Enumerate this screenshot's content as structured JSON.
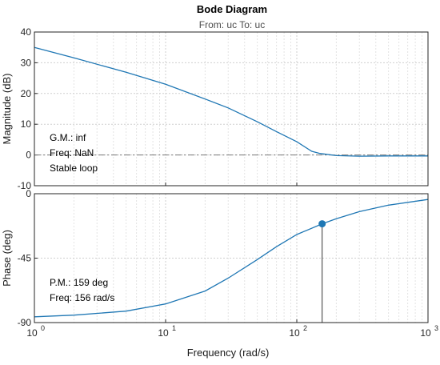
{
  "chart_data": {
    "type": "line",
    "title": "Bode Diagram",
    "subtitle": "From: uc  To: uc",
    "xlabel": "Frequency  (rad/s)",
    "x_scale": "log",
    "xlim": [
      1,
      1000
    ],
    "x_ticks": [
      1,
      10,
      100,
      1000
    ],
    "x_tick_labels": [
      "10",
      "10",
      "10",
      "10"
    ],
    "x_tick_exponents": [
      "0",
      "1",
      "2",
      "3"
    ],
    "grid": true,
    "line_color": "#1f77b4",
    "panels": [
      {
        "name": "magnitude",
        "ylabel": "Magnitude (dB)",
        "ylim": [
          -10,
          40
        ],
        "y_ticks": [
          -10,
          0,
          10,
          20,
          30,
          40
        ],
        "y_tick_labels": [
          "-10",
          "0",
          "10",
          "20",
          "30",
          "40"
        ],
        "series": [
          {
            "x": [
              1,
              2,
              5,
              10,
              20,
              30,
              50,
              70,
              100,
              130,
              150,
              200,
              300,
              500,
              1000
            ],
            "y": [
              35.0,
              31.6,
              26.9,
              23.0,
              18.2,
              15.3,
              10.8,
              7.6,
              4.3,
              1.2,
              0.5,
              -0.2,
              -0.4,
              -0.3,
              -0.3
            ]
          }
        ],
        "reference_line": {
          "y": 0,
          "style": "dash-dot",
          "color": "#7a7a7a"
        },
        "annotations": [
          "G.M.: inf",
          "Freq: NaN",
          "Stable loop"
        ]
      },
      {
        "name": "phase",
        "ylabel": "Phase (deg)",
        "ylim": [
          -90,
          0
        ],
        "y_ticks": [
          -90,
          -45,
          0
        ],
        "y_tick_labels": [
          "-90",
          "-45",
          "0"
        ],
        "series": [
          {
            "x": [
              1,
              2,
              5,
              10,
              20,
              30,
              50,
              70,
              100,
              156,
              200,
              300,
              500,
              1000
            ],
            "y": [
              -86.0,
              -84.8,
              -82.0,
              -77.0,
              -68.0,
              -59.0,
              -46.0,
              -37.0,
              -28.5,
              -21.0,
              -17.5,
              -12.5,
              -8.0,
              -4.0
            ]
          }
        ],
        "marker": {
          "x": 156,
          "y": -21,
          "color": "#1f77b4"
        },
        "annotations": [
          "P.M.: 159 deg",
          "Freq: 156 rad/s"
        ]
      }
    ]
  }
}
